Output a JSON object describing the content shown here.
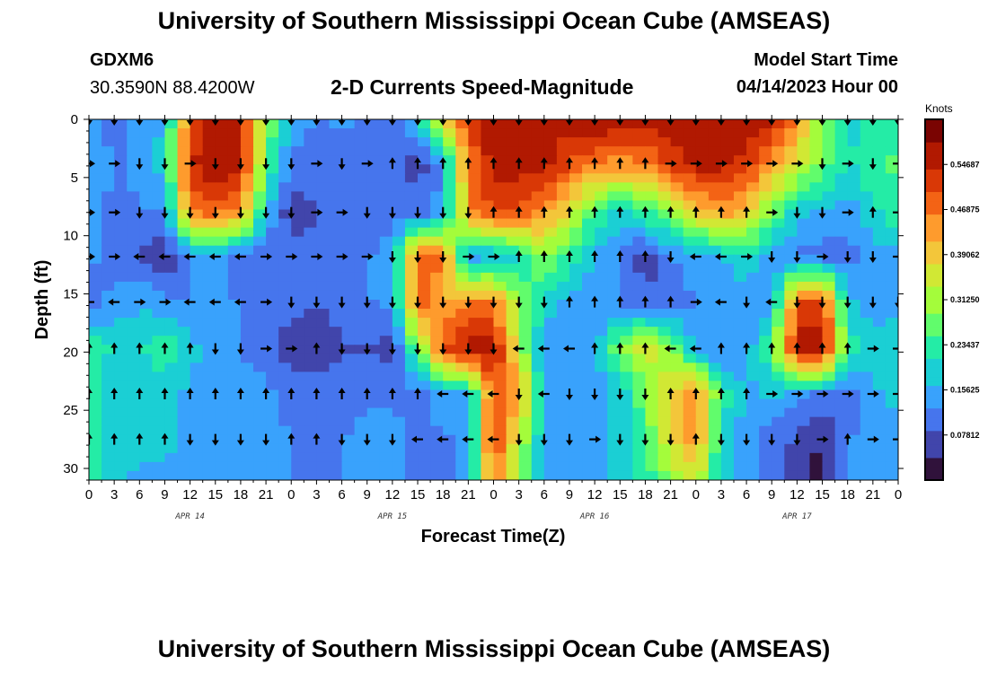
{
  "header": {
    "title": "University of Southern Mississippi Ocean Cube (AMSEAS)",
    "station": "GDXM6",
    "coordinates": "30.3590N  88.4200W",
    "subtitle": "2-D Currents Speed-Magnitude",
    "model_start_label": "Model Start Time",
    "model_start_value": "04/14/2023 Hour 00"
  },
  "footer": {
    "title": "University of Southern Mississippi Ocean Cube (AMSEAS)"
  },
  "chart_data": {
    "type": "heatmap",
    "title": "2-D Currents Speed-Magnitude",
    "xlabel": "Forecast Time(Z)",
    "ylabel": "Depth (ft)",
    "x_ticks": [
      "0",
      "3",
      "6",
      "9",
      "12",
      "15",
      "18",
      "21",
      "0",
      "3",
      "6",
      "9",
      "12",
      "15",
      "18",
      "21",
      "0",
      "3",
      "6",
      "9",
      "12",
      "15",
      "18",
      "21",
      "0",
      "3",
      "6",
      "9",
      "12",
      "15",
      "18",
      "21",
      "0"
    ],
    "x_range_hours": [
      0,
      96
    ],
    "day_labels": [
      {
        "label": "APR 14",
        "hour": 12
      },
      {
        "label": "APR 15",
        "hour": 36
      },
      {
        "label": "APR 16",
        "hour": 60
      },
      {
        "label": "APR 17",
        "hour": 84
      }
    ],
    "y_ticks": [
      0,
      5,
      10,
      15,
      20,
      25,
      30
    ],
    "y_range": [
      0,
      31
    ],
    "y_inverted": true,
    "colorbar": {
      "unit": "Knots",
      "range": [
        0,
        0.625
      ],
      "tick_labels": [
        "0.07812",
        "0.15625",
        "0.23437",
        "0.31250",
        "0.39062",
        "0.46875",
        "0.54687"
      ],
      "colors": [
        "#30123b",
        "#4145ab",
        "#4675ed",
        "#39a2fc",
        "#1bcfd4",
        "#24eca6",
        "#61fc6c",
        "#a4fc3b",
        "#d1e834",
        "#f3c63a",
        "#fe9b2d",
        "#f36315",
        "#d93806",
        "#b11901",
        "#7a0402"
      ]
    },
    "vector_depths_ft": [
      0,
      3.8,
      8,
      11.8,
      15.7,
      19.7,
      23.6,
      27.5
    ],
    "speed_grid_depths_ft": [
      0,
      3.8,
      8,
      11.8,
      15.7,
      19.7,
      23.6,
      27.5,
      31
    ],
    "speed_grid_hours": [
      0,
      3,
      6,
      9,
      12,
      15,
      18,
      21,
      24,
      27,
      30,
      33,
      36,
      39,
      42,
      45,
      48,
      51,
      54,
      57,
      60,
      63,
      66,
      69,
      72,
      75,
      78,
      81,
      84,
      87,
      90,
      93,
      96
    ],
    "speed_knots": [
      [
        0.14,
        0.1,
        0.14,
        0.16,
        0.48,
        0.56,
        0.56,
        0.3,
        0.15,
        0.12,
        0.14,
        0.12,
        0.1,
        0.18,
        0.36,
        0.52,
        0.58,
        0.56,
        0.56,
        0.56,
        0.58,
        0.58,
        0.56,
        0.56,
        0.58,
        0.56,
        0.58,
        0.56,
        0.44,
        0.3,
        0.2,
        0.22,
        0.24
      ],
      [
        0.18,
        0.12,
        0.14,
        0.2,
        0.54,
        0.58,
        0.56,
        0.26,
        0.12,
        0.1,
        0.1,
        0.08,
        0.1,
        0.06,
        0.14,
        0.46,
        0.56,
        0.56,
        0.56,
        0.5,
        0.46,
        0.44,
        0.46,
        0.52,
        0.56,
        0.56,
        0.52,
        0.44,
        0.36,
        0.28,
        0.2,
        0.24,
        0.26
      ],
      [
        0.16,
        0.1,
        0.12,
        0.12,
        0.46,
        0.48,
        0.44,
        0.18,
        0.05,
        0.08,
        0.1,
        0.1,
        0.12,
        0.1,
        0.14,
        0.44,
        0.5,
        0.5,
        0.44,
        0.36,
        0.24,
        0.2,
        0.24,
        0.3,
        0.38,
        0.44,
        0.4,
        0.28,
        0.18,
        0.16,
        0.14,
        0.2,
        0.24
      ],
      [
        0.14,
        0.1,
        0.08,
        0.04,
        0.14,
        0.16,
        0.1,
        0.08,
        0.1,
        0.1,
        0.12,
        0.12,
        0.14,
        0.48,
        0.48,
        0.14,
        0.16,
        0.2,
        0.3,
        0.24,
        0.16,
        0.12,
        0.05,
        0.12,
        0.16,
        0.16,
        0.2,
        0.14,
        0.12,
        0.1,
        0.1,
        0.14,
        0.16
      ],
      [
        0.1,
        0.14,
        0.16,
        0.14,
        0.12,
        0.14,
        0.12,
        0.1,
        0.1,
        0.08,
        0.1,
        0.12,
        0.14,
        0.5,
        0.4,
        0.46,
        0.46,
        0.3,
        0.2,
        0.14,
        0.14,
        0.12,
        0.1,
        0.1,
        0.12,
        0.14,
        0.14,
        0.14,
        0.5,
        0.52,
        0.18,
        0.14,
        0.16
      ],
      [
        0.24,
        0.2,
        0.2,
        0.24,
        0.18,
        0.14,
        0.12,
        0.1,
        0.06,
        0.06,
        0.08,
        0.08,
        0.06,
        0.28,
        0.5,
        0.56,
        0.56,
        0.34,
        0.14,
        0.12,
        0.14,
        0.3,
        0.36,
        0.3,
        0.16,
        0.12,
        0.14,
        0.26,
        0.56,
        0.58,
        0.24,
        0.18,
        0.2
      ],
      [
        0.22,
        0.18,
        0.18,
        0.18,
        0.16,
        0.16,
        0.16,
        0.14,
        0.1,
        0.1,
        0.1,
        0.12,
        0.12,
        0.1,
        0.16,
        0.16,
        0.5,
        0.44,
        0.16,
        0.12,
        0.14,
        0.18,
        0.28,
        0.38,
        0.46,
        0.24,
        0.16,
        0.18,
        0.14,
        0.12,
        0.1,
        0.16,
        0.18
      ],
      [
        0.24,
        0.18,
        0.18,
        0.18,
        0.16,
        0.14,
        0.16,
        0.16,
        0.12,
        0.12,
        0.12,
        0.14,
        0.14,
        0.12,
        0.12,
        0.14,
        0.52,
        0.34,
        0.16,
        0.14,
        0.14,
        0.18,
        0.26,
        0.36,
        0.44,
        0.2,
        0.14,
        0.1,
        0.08,
        0.04,
        0.12,
        0.14,
        0.14
      ],
      [
        0.26,
        0.18,
        0.16,
        0.16,
        0.14,
        0.14,
        0.14,
        0.14,
        0.12,
        0.12,
        0.12,
        0.14,
        0.14,
        0.1,
        0.1,
        0.14,
        0.48,
        0.28,
        0.14,
        0.14,
        0.14,
        0.18,
        0.22,
        0.3,
        0.36,
        0.18,
        0.14,
        0.1,
        0.06,
        0.02,
        0.12,
        0.14,
        0.14
      ]
    ],
    "direction_rows": [
      "SSSSSSSSSSSSSSSSSSSSSSSSSSSSSSSSS",
      "EESSESSSSESENNNNNNNNNNNEEEEEESESE",
      "EESSSSSSSEESSSSSNNNNNNNNNNNESSENE",
      "EEWWWWWEEEEESSSEENNNNNNSWWESSESSE",
      "WWEEWWWESSSSSSSSSSSNNNNNEWSWSSSSS",
      "NNNNNSSEENSSSSSSSWWWNNNWWNNNNNNEE",
      "NNNNNNNNNNNNNNWWWSWSSSSNNNNEEEEEE",
      "NNNNSSSSNNSSSWWWWSSSESSSNSSSSENEE"
    ]
  }
}
